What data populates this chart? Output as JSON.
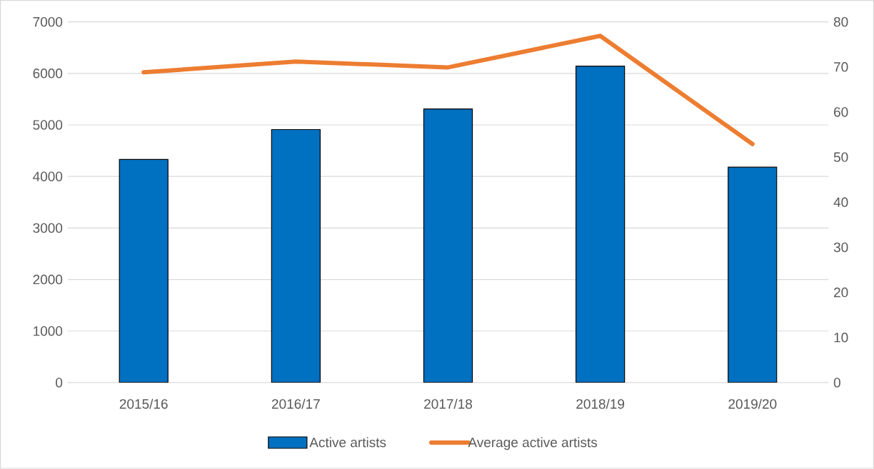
{
  "chart_data": {
    "type": "bar",
    "categories": [
      "2015/16",
      "2016/17",
      "2017/18",
      "2018/19",
      "2019/20"
    ],
    "series": [
      {
        "name": "Active artists",
        "color": "#0070c0",
        "values": [
          4330,
          4910,
          5310,
          6140,
          4180
        ]
      },
      {
        "name": "Average active artists",
        "type": "line",
        "axis": "y2",
        "color": "#ed7d31",
        "values": [
          68.8,
          71.2,
          69.9,
          76.9,
          52.9
        ]
      }
    ],
    "ylim": [
      0,
      7000
    ],
    "yticks": [
      0,
      1000,
      2000,
      3000,
      4000,
      5000,
      6000,
      7000
    ],
    "y2lim": [
      0,
      80
    ],
    "y2ticks": [
      0,
      10,
      20,
      30,
      40,
      50,
      60,
      70,
      80
    ],
    "grid": "y",
    "legend": "bottom"
  }
}
